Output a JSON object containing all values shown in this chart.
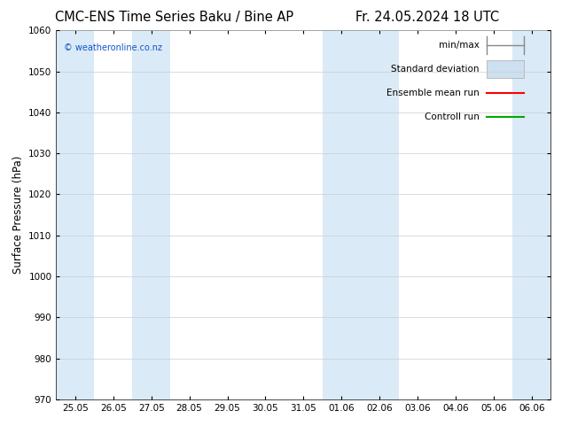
{
  "title_left": "CMC-ENS Time Series Baku / Bine AP",
  "title_right": "Fr. 24.05.2024 18 UTC",
  "ylabel": "Surface Pressure (hPa)",
  "ylim": [
    970,
    1060
  ],
  "yticks": [
    970,
    980,
    990,
    1000,
    1010,
    1020,
    1030,
    1040,
    1050,
    1060
  ],
  "x_labels": [
    "25.05",
    "26.05",
    "27.05",
    "28.05",
    "29.05",
    "30.05",
    "31.05",
    "01.06",
    "02.06",
    "03.06",
    "04.06",
    "05.06",
    "06.06"
  ],
  "x_values": [
    0,
    1,
    2,
    3,
    4,
    5,
    6,
    7,
    8,
    9,
    10,
    11,
    12
  ],
  "shaded_columns": [
    0,
    2,
    7,
    8,
    12
  ],
  "shade_color": "#daeaf7",
  "bg_color": "#ffffff",
  "watermark": "© weatheronline.co.nz",
  "title_fontsize": 10.5,
  "axis_label_fontsize": 8.5,
  "tick_fontsize": 7.5,
  "legend_fontsize": 7.5,
  "minmax_color": "#888888",
  "stddev_color": "#cce0f0",
  "ensemble_color": "#ff0000",
  "control_color": "#00aa00"
}
